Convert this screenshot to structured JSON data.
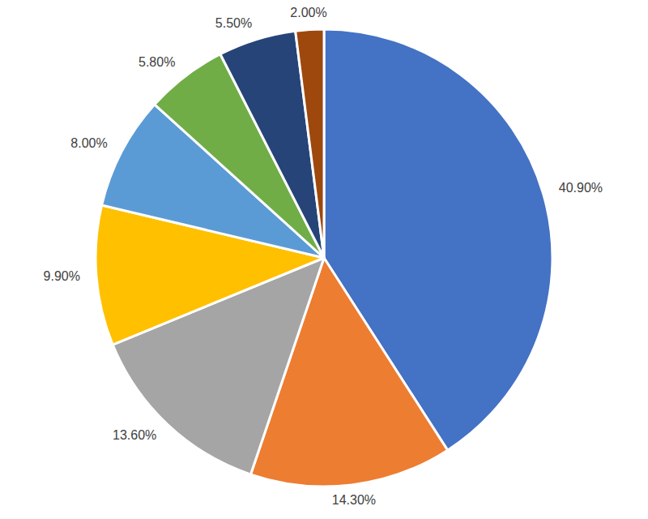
{
  "chart_data": {
    "type": "pie",
    "values": [
      40.9,
      14.3,
      13.6,
      9.9,
      8.0,
      5.8,
      5.5,
      2.0
    ],
    "value_labels": [
      "40.90%",
      "14.30%",
      "13.60%",
      "9.90%",
      "8.00%",
      "5.80%",
      "5.50%",
      "2.00%"
    ],
    "colors": [
      "#4472c4",
      "#ed7d31",
      "#a5a5a5",
      "#ffc000",
      "#5b9bd5",
      "#70ad47",
      "#264478",
      "#9e480e"
    ],
    "data_labels": true
  }
}
